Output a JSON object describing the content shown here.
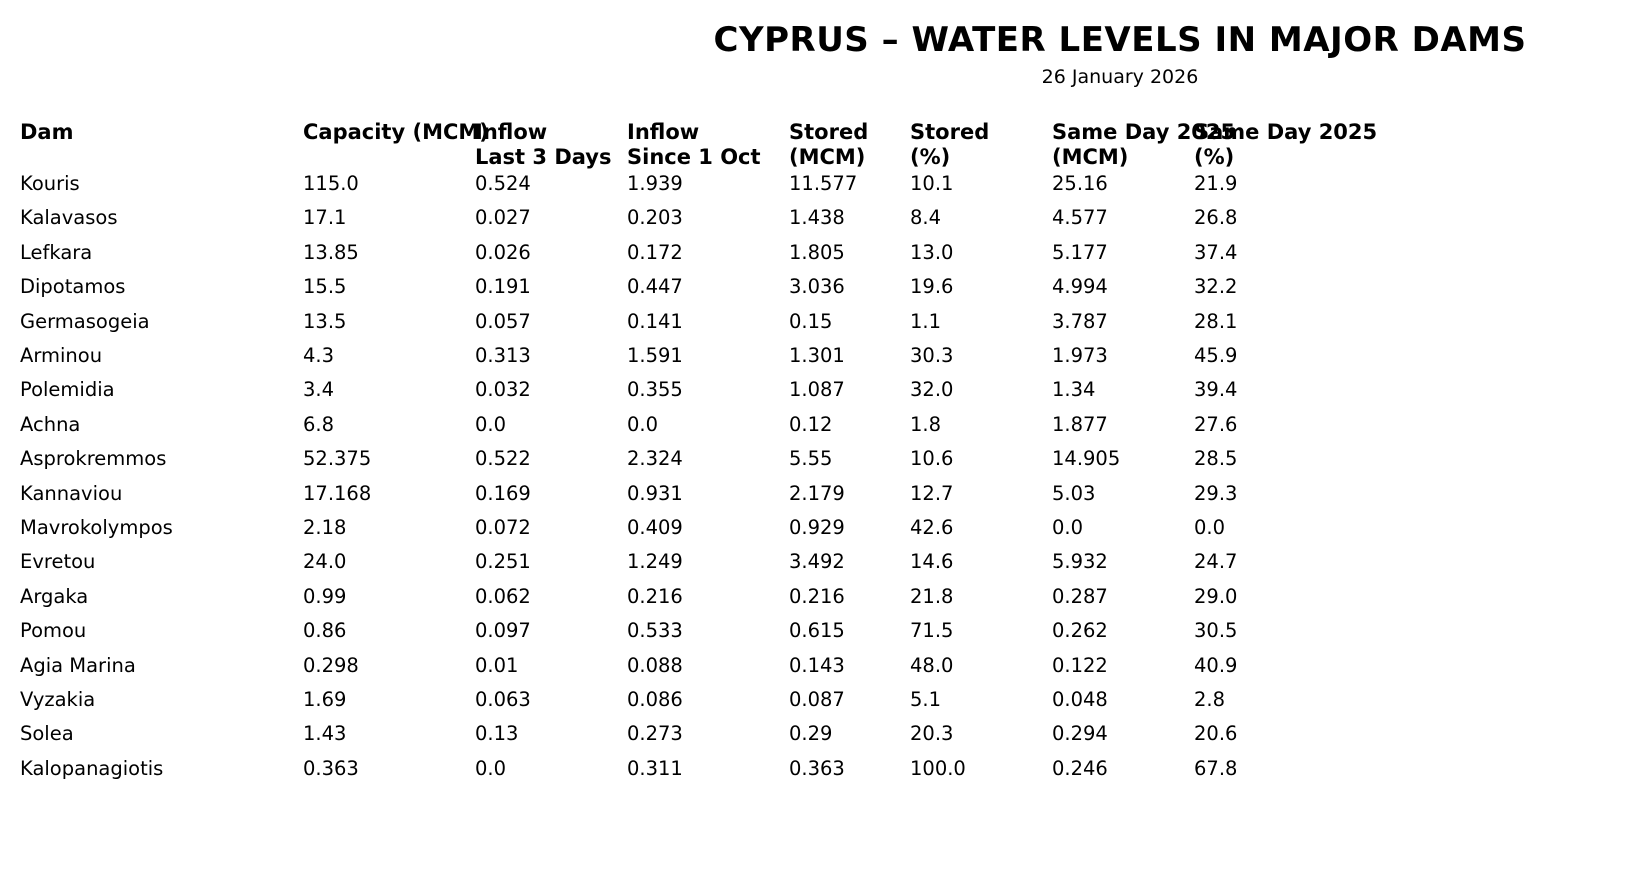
{
  "title": "CYPRUS – WATER LEVELS IN MAJOR DAMS",
  "subtitle": "26 January 2026",
  "chart_data": {
    "type": "table",
    "columns": [
      [
        "Dam"
      ],
      [
        "Capacity (MCM)"
      ],
      [
        "Inflow",
        "Last 3 Days"
      ],
      [
        "Inflow",
        "Since 1 Oct"
      ],
      [
        "Stored",
        "(MCM)"
      ],
      [
        "Stored",
        "(%)"
      ],
      [
        "Same Day 2025",
        "(MCM)"
      ],
      [
        "Same Day 2025",
        "(%)"
      ]
    ],
    "rows": [
      [
        "Kouris",
        "115.0",
        "0.524",
        "1.939",
        "11.577",
        "10.1",
        "25.16",
        "21.9"
      ],
      [
        "Kalavasos",
        "17.1",
        "0.027",
        "0.203",
        "1.438",
        "8.4",
        "4.577",
        "26.8"
      ],
      [
        "Lefkara",
        "13.85",
        "0.026",
        "0.172",
        "1.805",
        "13.0",
        "5.177",
        "37.4"
      ],
      [
        "Dipotamos",
        "15.5",
        "0.191",
        "0.447",
        "3.036",
        "19.6",
        "4.994",
        "32.2"
      ],
      [
        "Germasogeia",
        "13.5",
        "0.057",
        "0.141",
        "0.15",
        "1.1",
        "3.787",
        "28.1"
      ],
      [
        "Arminou",
        "4.3",
        "0.313",
        "1.591",
        "1.301",
        "30.3",
        "1.973",
        "45.9"
      ],
      [
        "Polemidia",
        "3.4",
        "0.032",
        "0.355",
        "1.087",
        "32.0",
        "1.34",
        "39.4"
      ],
      [
        "Achna",
        "6.8",
        "0.0",
        "0.0",
        "0.12",
        "1.8",
        "1.877",
        "27.6"
      ],
      [
        "Asprokremmos",
        "52.375",
        "0.522",
        "2.324",
        "5.55",
        "10.6",
        "14.905",
        "28.5"
      ],
      [
        "Kannaviou",
        "17.168",
        "0.169",
        "0.931",
        "2.179",
        "12.7",
        "5.03",
        "29.3"
      ],
      [
        "Mavrokolympos",
        "2.18",
        "0.072",
        "0.409",
        "0.929",
        "42.6",
        "0.0",
        "0.0"
      ],
      [
        "Evretou",
        "24.0",
        "0.251",
        "1.249",
        "3.492",
        "14.6",
        "5.932",
        "24.7"
      ],
      [
        "Argaka",
        "0.99",
        "0.062",
        "0.216",
        "0.216",
        "21.8",
        "0.287",
        "29.0"
      ],
      [
        "Pomou",
        "0.86",
        "0.097",
        "0.533",
        "0.615",
        "71.5",
        "0.262",
        "30.5"
      ],
      [
        "Agia Marina",
        "0.298",
        "0.01",
        "0.088",
        "0.143",
        "48.0",
        "0.122",
        "40.9"
      ],
      [
        "Vyzakia",
        "1.69",
        "0.063",
        "0.086",
        "0.087",
        "5.1",
        "0.048",
        "2.8"
      ],
      [
        "Solea",
        "1.43",
        "0.13",
        "0.273",
        "0.29",
        "20.3",
        "0.294",
        "20.6"
      ],
      [
        "Kalopanagiotis",
        "0.363",
        "0.0",
        "0.311",
        "0.363",
        "100.0",
        "0.246",
        "67.8"
      ]
    ]
  }
}
